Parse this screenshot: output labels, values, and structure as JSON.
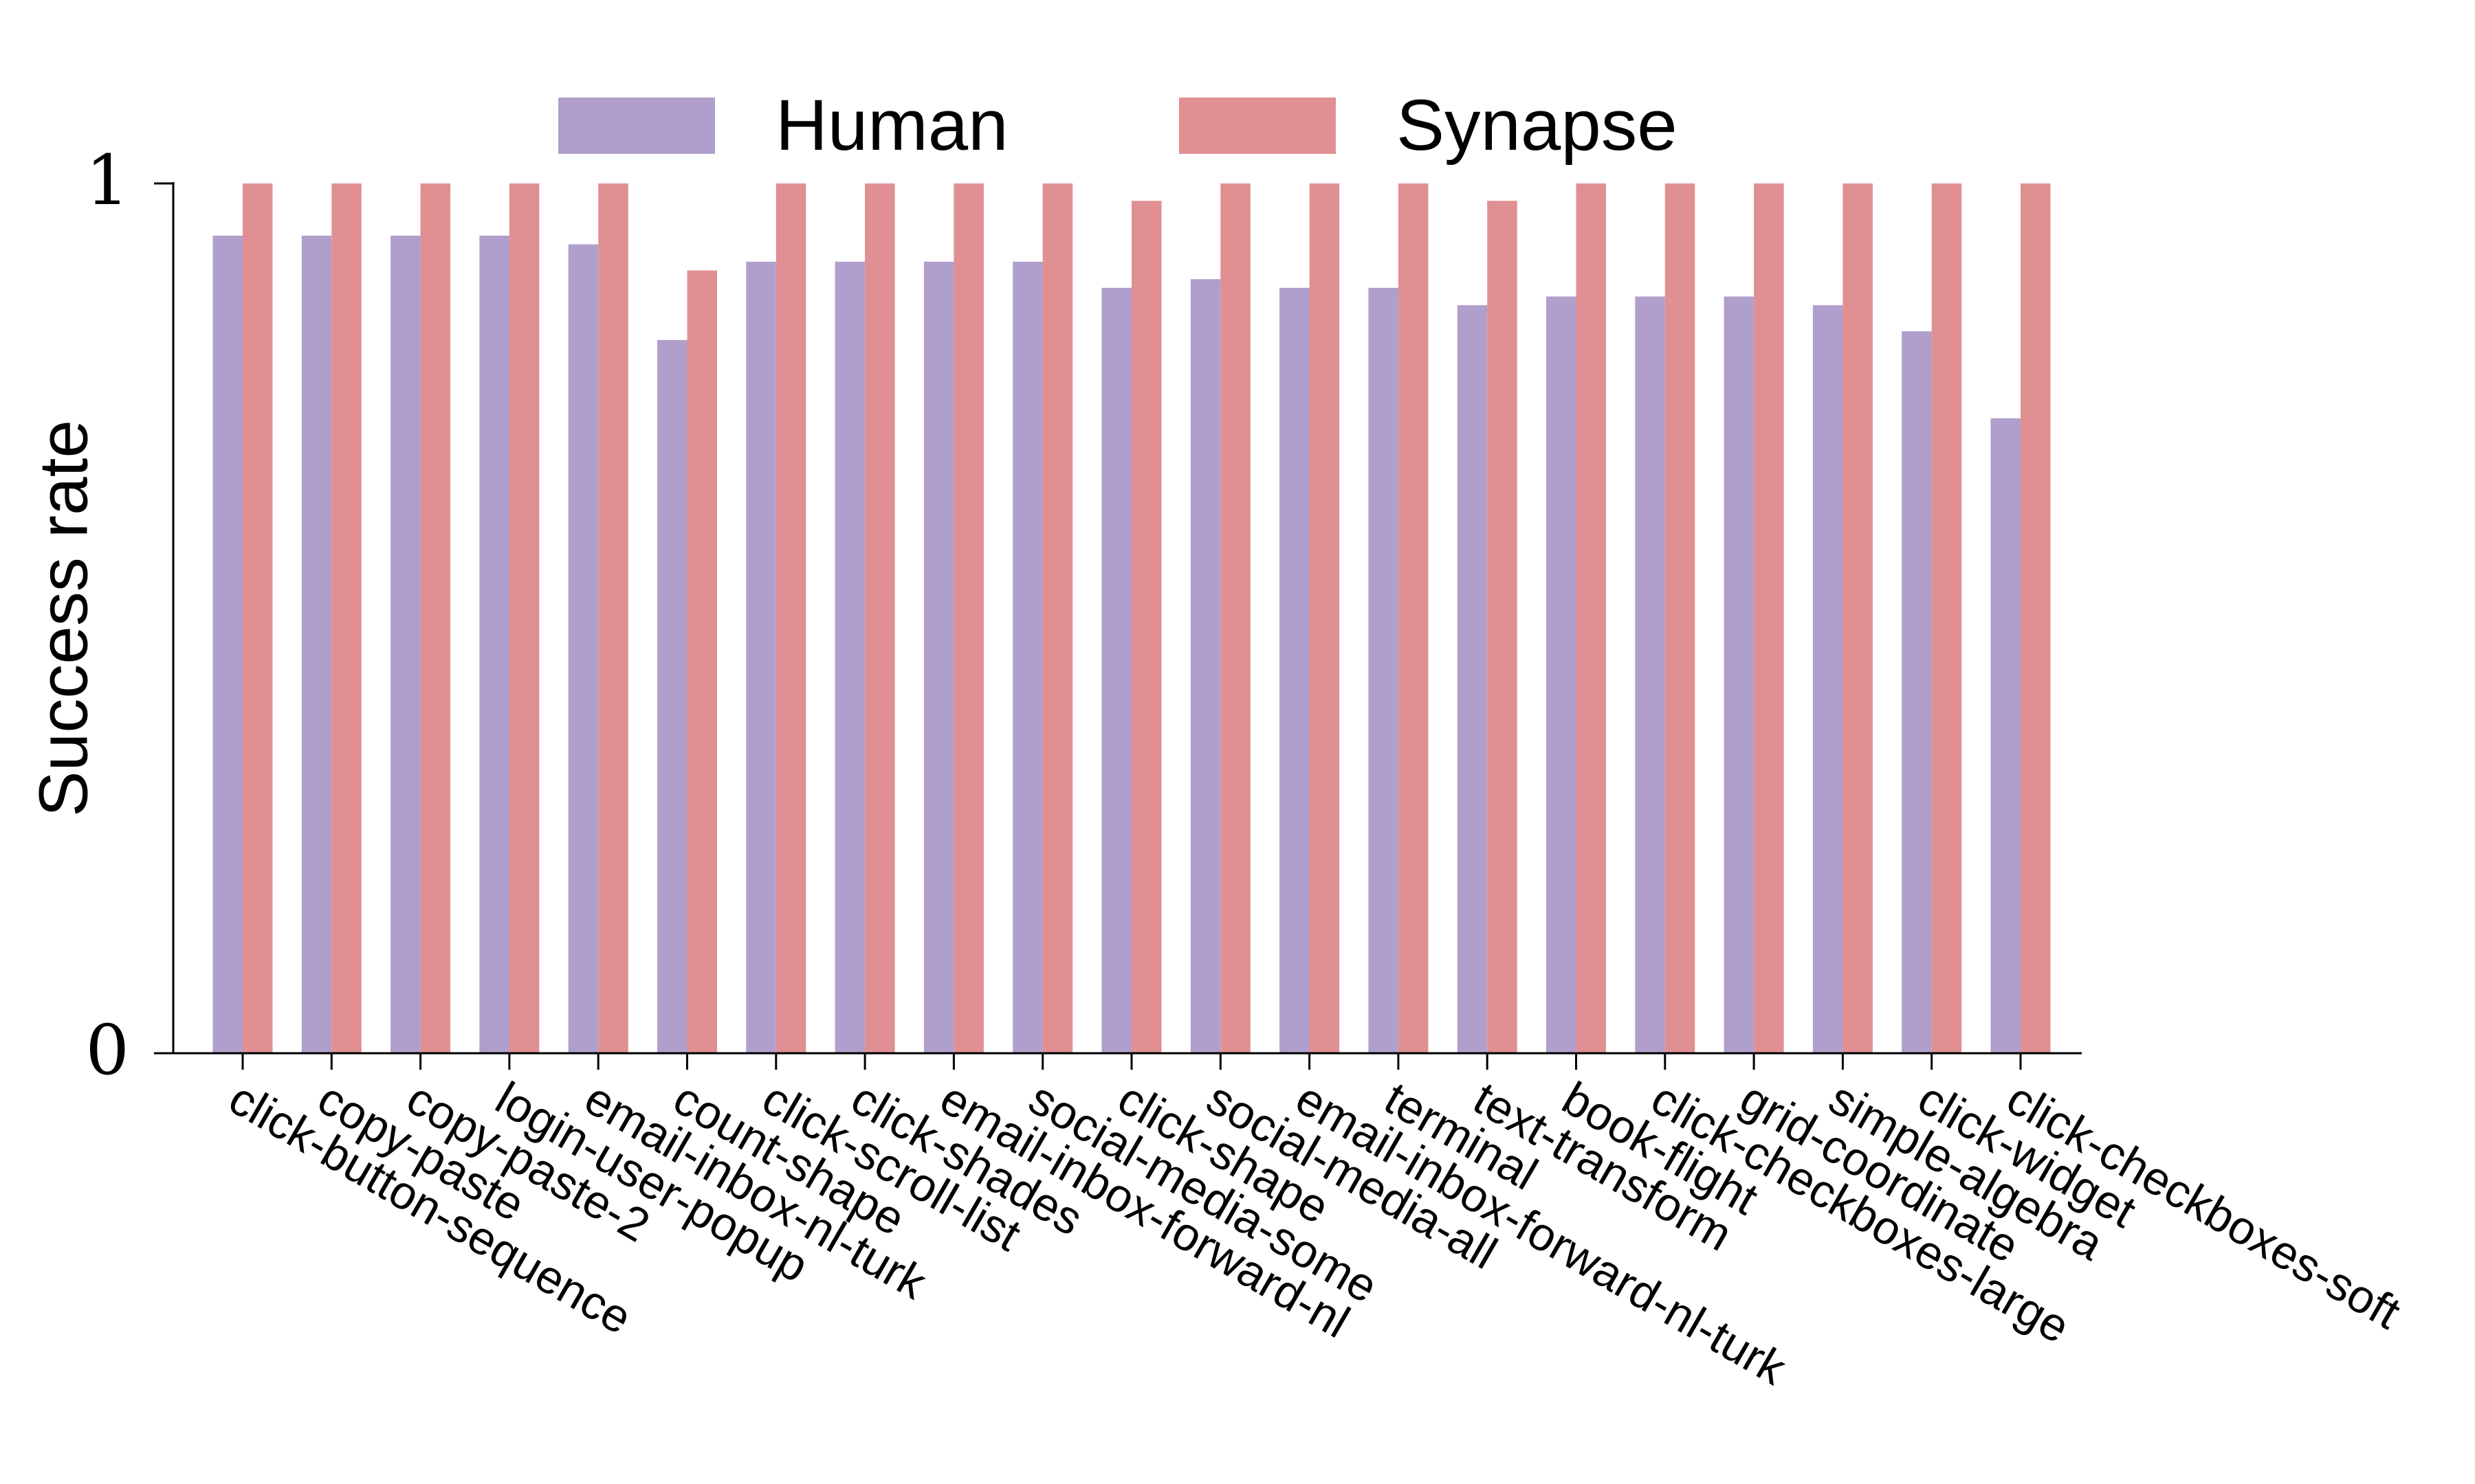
{
  "chart_data": {
    "type": "bar",
    "title": "",
    "xlabel": "",
    "ylabel": "Success rate",
    "ylim": [
      0,
      1
    ],
    "yticks": [
      "0",
      "1"
    ],
    "grid": false,
    "legend_position": "top-center",
    "categories": [
      "click-button-sequence",
      "copy-paste",
      "copy-paste-2",
      "login-user-popup",
      "email-inbox-nl-turk",
      "count-shape",
      "click-scroll-list",
      "click-shades",
      "email-inbox-forward-nl",
      "social-media-some",
      "click-shape",
      "social-media-all",
      "email-inbox-forward-nl-turk",
      "terminal",
      "text-transform",
      "book-flight",
      "click-checkboxes-large",
      "grid-coordinate",
      "simple-algebra",
      "click-widget",
      "click-checkboxes-soft"
    ],
    "series": [
      {
        "name": "Human",
        "color": "#b09fcc",
        "values": [
          0.94,
          0.94,
          0.94,
          0.94,
          0.93,
          0.82,
          0.91,
          0.91,
          0.91,
          0.91,
          0.88,
          0.89,
          0.88,
          0.88,
          0.86,
          0.87,
          0.87,
          0.87,
          0.86,
          0.83,
          0.73
        ]
      },
      {
        "name": "Synapse",
        "color": "#e09092",
        "values": [
          1.0,
          1.0,
          1.0,
          1.0,
          1.0,
          0.9,
          1.0,
          1.0,
          1.0,
          1.0,
          0.98,
          1.0,
          1.0,
          1.0,
          0.98,
          1.0,
          1.0,
          1.0,
          1.0,
          1.0,
          1.0
        ]
      }
    ]
  }
}
